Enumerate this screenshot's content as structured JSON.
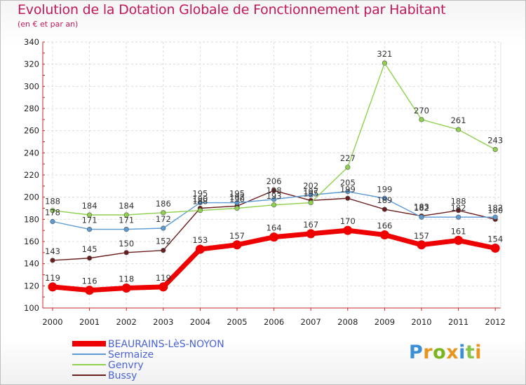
{
  "header": {
    "title": "Evolution de la Dotation Globale de Fonctionnement par Habitant",
    "subtitle": "(en € et par an)"
  },
  "brand": {
    "name": "Proxiti",
    "colors": [
      "#3b8fd9",
      "#e6951f",
      "#7ab51d",
      "#e6951f",
      "#3b8fd9",
      "#8bc34a",
      "#e6951f"
    ]
  },
  "chart_data": {
    "type": "line",
    "x": [
      "2000",
      "2001",
      "2002",
      "2003",
      "2004",
      "2005",
      "2006",
      "2007",
      "2008",
      "2009",
      "2010",
      "2011",
      "2012"
    ],
    "ylim": [
      100,
      340
    ],
    "yticks": [
      "100",
      "120",
      "140",
      "160",
      "180",
      "200",
      "220",
      "240",
      "260",
      "280",
      "300",
      "320",
      "340"
    ],
    "grid": true,
    "legend_position": "bottom-left",
    "series": [
      {
        "name": "BEAURAINS-LèS-NOYON",
        "color": "#ee0000",
        "values": [
          119,
          116,
          118,
          119,
          153,
          157,
          164,
          167,
          170,
          166,
          157,
          161,
          154
        ],
        "labels": [
          "119",
          "116",
          "118",
          "119",
          "153",
          "157",
          "164",
          "167",
          "170",
          "166",
          "157",
          "161",
          "154"
        ]
      },
      {
        "name": "Sermaize",
        "color": "#5b9bd5",
        "values": [
          178,
          171,
          171,
          172,
          195,
          195,
          198,
          202,
          205,
          199,
          182,
          182,
          182
        ],
        "labels": [
          "178",
          "171",
          "171",
          "172",
          "195",
          "195",
          "198",
          "202",
          "205",
          "199",
          "182",
          "182",
          "182"
        ]
      },
      {
        "name": "Genvry",
        "color": "#8fd14f",
        "values": [
          188,
          184,
          184,
          186,
          188,
          190,
          193,
          195,
          227,
          321,
          270,
          261,
          243
        ],
        "labels": [
          "188",
          "184",
          "184",
          "186",
          "188",
          "190",
          "193",
          "195",
          "227",
          "321",
          "270",
          "261",
          "243"
        ]
      },
      {
        "name": "Bussy",
        "color": "#6b1d1d",
        "values": [
          143,
          145,
          150,
          152,
          190,
          192,
          206,
          197,
          199,
          189,
          183,
          188,
          180
        ],
        "labels": [
          "143",
          "145",
          "150",
          "152",
          "190",
          "192",
          "206",
          "197",
          "199",
          "189",
          "183",
          "188",
          "180"
        ]
      }
    ]
  }
}
